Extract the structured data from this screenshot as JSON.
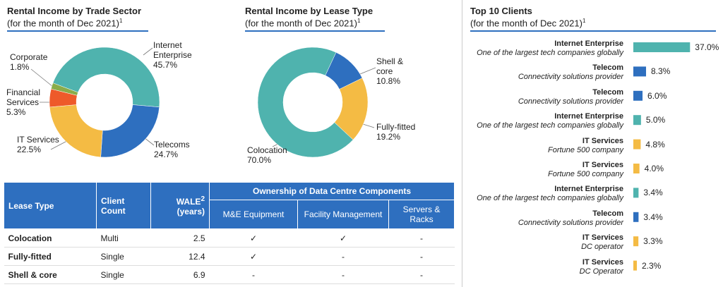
{
  "chart_data": [
    {
      "type": "donut",
      "title": "Rental Income by Trade Sector",
      "subtitle": "(for the month of Dec 2021)",
      "footnote_mark": "1",
      "categories": [
        "Internet Enterprise",
        "Telecoms",
        "IT Services",
        "Financial Services",
        "Corporate"
      ],
      "values": [
        45.7,
        24.7,
        22.5,
        5.3,
        1.8
      ],
      "value_labels": [
        "45.7%",
        "24.7%",
        "22.5%",
        "5.3%",
        "1.8%"
      ],
      "colors": [
        "#4fb3ae",
        "#2e6fbf",
        "#f4bb44",
        "#ee5a2a",
        "#8aac4a"
      ]
    },
    {
      "type": "donut",
      "title": "Rental Income by Lease Type",
      "subtitle": "(for the month of Dec 2021)",
      "footnote_mark": "1",
      "categories": [
        "Shell & core",
        "Fully-fitted",
        "Colocation"
      ],
      "values": [
        10.8,
        19.2,
        70.0
      ],
      "value_labels": [
        "10.8%",
        "19.2%",
        "70.0%"
      ],
      "colors": [
        "#2e6fbf",
        "#f4bb44",
        "#4fb3ae"
      ]
    },
    {
      "type": "bar",
      "orientation": "horizontal",
      "title": "Top 10 Clients",
      "subtitle": "(for the month of Dec 2021)",
      "footnote_mark": "1",
      "categories": [
        "Internet Enterprise",
        "Telecom",
        "Telecom",
        "Internet Enterprise",
        "IT Services",
        "IT Services",
        "Internet Enterprise",
        "Telecom",
        "IT Services",
        "IT Services"
      ],
      "descriptions": [
        "One of the largest tech companies globally",
        "Connectivity solutions provider",
        "Connectivity solutions provider",
        "One of the largest tech companies globally",
        "Fortune 500 company",
        "Fortune 500 company",
        "One of the largest tech companies globally",
        "Connectivity solutions provider",
        "DC operator",
        "DC Operator"
      ],
      "values": [
        37.0,
        8.3,
        6.0,
        5.0,
        4.8,
        4.0,
        3.4,
        3.4,
        3.3,
        2.3
      ],
      "value_labels": [
        "37.0%",
        "8.3%",
        "6.0%",
        "5.0%",
        "4.8%",
        "4.0%",
        "3.4%",
        "3.4%",
        "3.3%",
        "2.3%"
      ],
      "colors": [
        "#4fb3ae",
        "#2e6fbf",
        "#2e6fbf",
        "#4fb3ae",
        "#f4bb44",
        "#f4bb44",
        "#4fb3ae",
        "#2e6fbf",
        "#f4bb44",
        "#f4bb44"
      ]
    }
  ],
  "table": {
    "header": {
      "lease_type": "Lease Type",
      "client_count": "Client Count",
      "wale": "WALE",
      "wale_mark": "2",
      "wale_unit": "(years)",
      "ownership": "Ownership of Data Centre Components",
      "components": [
        "M&E Equipment",
        "Facility Management",
        "Servers & Racks"
      ]
    },
    "rows": [
      [
        "Colocation",
        "Multi",
        2.5,
        "✓",
        "✓",
        "-"
      ],
      [
        "Fully-fitted",
        "Single",
        12.4,
        "✓",
        "-",
        "-"
      ],
      [
        "Shell & core",
        "Single",
        6.9,
        "-",
        "-",
        "-"
      ]
    ]
  }
}
